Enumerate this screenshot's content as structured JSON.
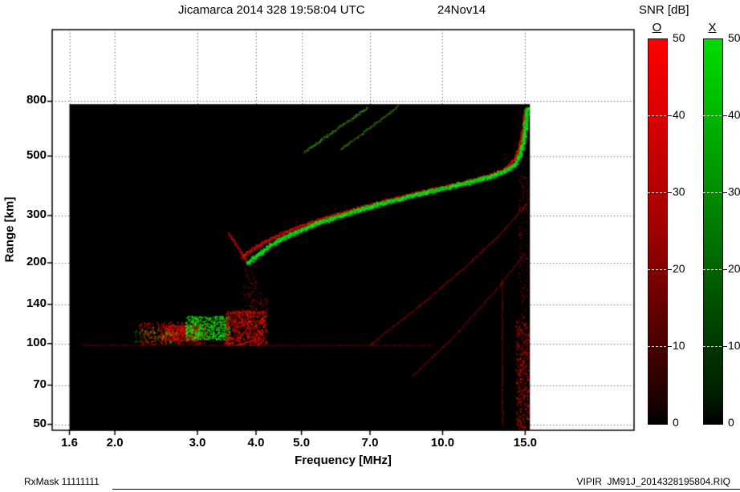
{
  "footer": {
    "left": "RxMask 11111111",
    "right": "VIPIR  JM91J_2014328195804.RIQ"
  },
  "chart_data": {
    "type": "heatmap",
    "subtype": "ionogram",
    "title": "Jicamarca 2014 328 19:58:04 UTC",
    "date_label": "24Nov14",
    "xlabel": "Frequency [MHz]",
    "ylabel": "Range [km]",
    "x_scale": "log",
    "y_scale": "log",
    "xlim": [
      1.47,
      25.6
    ],
    "ylim": [
      47.5,
      1480
    ],
    "x_ticks": [
      "1.6",
      "2.0",
      "3.0",
      "4.0",
      "5.0",
      "7.0",
      "10.0",
      "15.0"
    ],
    "x_tick_values": [
      1.6,
      2.0,
      3.0,
      4.0,
      5.0,
      7.0,
      10.0,
      15.0
    ],
    "y_ticks": [
      "800",
      "500",
      "300",
      "200",
      "140",
      "100",
      "70",
      "50"
    ],
    "y_tick_values": [
      800,
      500,
      300,
      200,
      140,
      100,
      70,
      50
    ],
    "grid": "dotted",
    "background": "#ffffff",
    "data_region_color": "#000000",
    "data_extent": {
      "f": [
        1.6,
        15.35
      ],
      "km": [
        47.5,
        780
      ]
    },
    "colorbar": {
      "label": "SNR [dB]",
      "o_label": "O",
      "x_label": "X",
      "range": [
        0,
        50
      ],
      "tick_values": [
        50,
        40,
        30,
        20,
        10,
        0
      ],
      "o_top_color": "#ff0000",
      "x_top_color": "#00dd00",
      "bottom_color": "#000000"
    },
    "features": [
      {
        "name": "e-layer-baseline-100km",
        "kind": "trace",
        "mode": "O",
        "points": [
          [
            1.7,
            99
          ],
          [
            9.5,
            99
          ]
        ],
        "width": 1.5,
        "intensity": 0.25,
        "density": 0.6
      },
      {
        "name": "e-region-red-west",
        "kind": "blob",
        "mode": "O",
        "f": [
          2.25,
          3.15
        ],
        "km": [
          100,
          121
        ],
        "density": 0.5,
        "intensity": 0.7
      },
      {
        "name": "e-region-red-west-core",
        "kind": "blob",
        "mode": "O",
        "f": [
          2.5,
          3.05
        ],
        "km": [
          103,
          118
        ],
        "density": 1.0,
        "intensity": 0.95
      },
      {
        "name": "e-region-green-speckle-west",
        "kind": "blob",
        "mode": "X",
        "f": [
          2.2,
          2.7
        ],
        "km": [
          101,
          113
        ],
        "density": 0.3,
        "intensity": 0.5
      },
      {
        "name": "e-region-green-core",
        "kind": "blob",
        "mode": "X",
        "f": [
          2.82,
          3.5
        ],
        "km": [
          104,
          127
        ],
        "density": 1.0,
        "intensity": 0.95
      },
      {
        "name": "e-region-red-east",
        "kind": "blob",
        "mode": "O",
        "f": [
          3.42,
          4.2
        ],
        "km": [
          99,
          133
        ],
        "density": 0.8,
        "intensity": 0.9
      },
      {
        "name": "e-region-red-spray",
        "kind": "blob",
        "mode": "O",
        "f": [
          3.7,
          4.22
        ],
        "km": [
          130,
          156
        ],
        "density": 0.25,
        "intensity": 0.45
      },
      {
        "name": "cusp-underside-spread",
        "kind": "blob",
        "mode": "O",
        "f": [
          3.76,
          4.02
        ],
        "km": [
          152,
          200
        ],
        "density": 0.2,
        "intensity": 0.4
      },
      {
        "name": "cusp-leading-red-arc",
        "kind": "trace",
        "mode": "O",
        "points": [
          [
            3.48,
            260
          ],
          [
            3.6,
            237
          ],
          [
            3.72,
            218
          ],
          [
            3.82,
            204
          ]
        ],
        "width": 2.5,
        "intensity": 0.55,
        "density": 0.8
      },
      {
        "name": "oblique-streak-1-red",
        "kind": "trace",
        "mode": "O",
        "points": [
          [
            5.05,
            516
          ],
          [
            5.65,
            594
          ],
          [
            6.3,
            678
          ],
          [
            6.92,
            762
          ]
        ],
        "width": 3,
        "intensity": 0.4,
        "density": 0.35
      },
      {
        "name": "oblique-streak-1-green",
        "kind": "trace",
        "mode": "X",
        "points": [
          [
            5.05,
            520
          ],
          [
            5.65,
            598
          ],
          [
            6.3,
            682
          ],
          [
            6.92,
            768
          ]
        ],
        "width": 2.5,
        "intensity": 0.6,
        "density": 0.55
      },
      {
        "name": "oblique-streak-2-red",
        "kind": "trace",
        "mode": "O",
        "points": [
          [
            6.05,
            530
          ],
          [
            6.75,
            610
          ],
          [
            7.5,
            700
          ],
          [
            8.05,
            772
          ]
        ],
        "width": 2.5,
        "intensity": 0.3,
        "density": 0.3
      },
      {
        "name": "oblique-streak-2-green",
        "kind": "trace",
        "mode": "X",
        "points": [
          [
            6.05,
            535
          ],
          [
            6.75,
            615
          ],
          [
            7.5,
            705
          ],
          [
            8.05,
            778
          ]
        ],
        "width": 2,
        "intensity": 0.45,
        "density": 0.4
      },
      {
        "name": "multiple-hop-diagonal-1",
        "kind": "trace",
        "mode": "O",
        "points": [
          [
            7.0,
            100
          ],
          [
            9.0,
            141
          ],
          [
            11.2,
            196
          ],
          [
            13.2,
            256
          ],
          [
            15.1,
            335
          ]
        ],
        "width": 2,
        "intensity": 0.38,
        "density": 0.5
      },
      {
        "name": "multiple-hop-diagonal-2",
        "kind": "trace",
        "mode": "O",
        "points": [
          [
            8.6,
            76
          ],
          [
            10.6,
            108
          ],
          [
            12.8,
            156
          ],
          [
            15.05,
            222
          ]
        ],
        "width": 1.8,
        "intensity": 0.3,
        "density": 0.4
      },
      {
        "name": "interference-band-low",
        "kind": "blob",
        "mode": "O",
        "f": [
          14.3,
          15.3
        ],
        "km": [
          48,
          122
        ],
        "density": 0.55,
        "intensity": 0.6
      },
      {
        "name": "interference-band-high",
        "kind": "blob",
        "mode": "O",
        "f": [
          14.5,
          15.25
        ],
        "km": [
          122,
          430
        ],
        "density": 0.2,
        "intensity": 0.35
      },
      {
        "name": "interference-line-13mhz",
        "kind": "trace",
        "mode": "O",
        "points": [
          [
            13.35,
            50
          ],
          [
            13.35,
            175
          ]
        ],
        "width": 1.2,
        "intensity": 0.3,
        "density": 0.5
      },
      {
        "name": "f-trace-o-mode-red",
        "kind": "trace",
        "mode": "O",
        "points": [
          [
            3.72,
            209
          ],
          [
            3.86,
            221
          ],
          [
            4.06,
            235
          ],
          [
            4.36,
            251
          ],
          [
            4.76,
            268
          ],
          [
            5.26,
            285
          ],
          [
            5.86,
            302
          ],
          [
            6.56,
            320
          ],
          [
            7.36,
            338
          ],
          [
            8.26,
            356
          ],
          [
            9.3,
            374
          ],
          [
            10.4,
            391
          ],
          [
            11.5,
            407
          ],
          [
            12.5,
            424
          ],
          [
            13.3,
            442
          ],
          [
            13.8,
            463
          ],
          [
            14.2,
            491
          ],
          [
            14.5,
            531
          ],
          [
            14.7,
            592
          ],
          [
            14.85,
            669
          ],
          [
            14.95,
            749
          ]
        ],
        "width": 3.5,
        "intensity": 0.8,
        "density": 0.9
      },
      {
        "name": "f-trace-x-mode-green",
        "kind": "trace",
        "mode": "X",
        "points": [
          [
            3.82,
            200
          ],
          [
            3.93,
            208
          ],
          [
            4.06,
            218
          ],
          [
            4.21,
            229
          ],
          [
            4.41,
            241
          ],
          [
            4.66,
            253
          ],
          [
            4.96,
            266
          ],
          [
            5.36,
            281
          ],
          [
            5.86,
            296
          ],
          [
            6.46,
            312
          ],
          [
            7.16,
            329
          ],
          [
            7.96,
            345
          ],
          [
            8.86,
            362
          ],
          [
            9.86,
            379
          ],
          [
            10.9,
            394
          ],
          [
            11.9,
            409
          ],
          [
            12.8,
            424
          ],
          [
            13.5,
            440
          ],
          [
            14.0,
            457
          ],
          [
            14.36,
            479
          ],
          [
            14.6,
            511
          ],
          [
            14.8,
            557
          ],
          [
            14.95,
            619
          ],
          [
            15.05,
            696
          ],
          [
            15.12,
            766
          ]
        ],
        "width": 4.5,
        "intensity": 1.0,
        "density": 1.4
      }
    ]
  }
}
